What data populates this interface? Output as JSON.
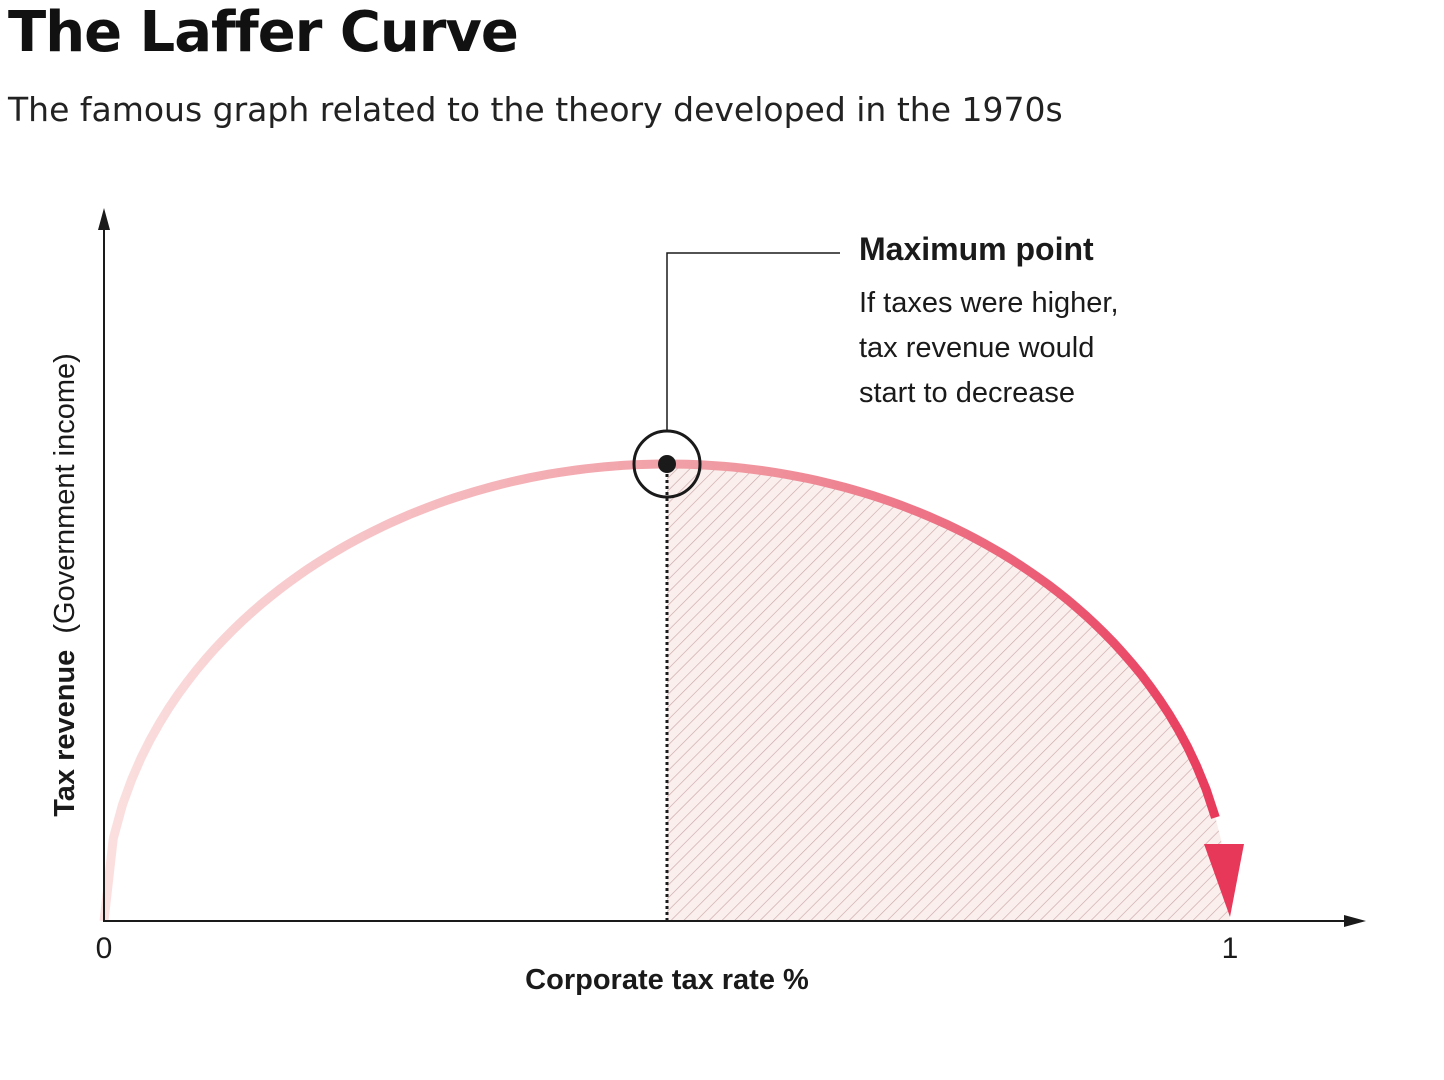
{
  "title": "The Laffer Curve",
  "subtitle": "The famous graph related to the theory developed in the 1970s",
  "chart_data": {
    "type": "line",
    "xlabel": "Corporate tax rate %",
    "ylabel_bold": "Tax revenue",
    "ylabel_rest": "(Government income)",
    "x_ticks": [
      "0",
      "1"
    ],
    "xlim": [
      0,
      1
    ],
    "grid": false,
    "peak": {
      "x": 0.5,
      "y": 1.0
    },
    "annotation": {
      "title": "Maximum point",
      "lines": [
        "If taxes were higher,",
        "tax revenue would",
        "start to decrease"
      ]
    },
    "colors": {
      "curve_light": "#fbe0e0",
      "curve_mid": "#f09aa2",
      "curve_dark": "#e8385a",
      "hatch": "#c9a8a8",
      "hatch_bg": "#fbefed",
      "axis": "#1a1a1a"
    }
  }
}
